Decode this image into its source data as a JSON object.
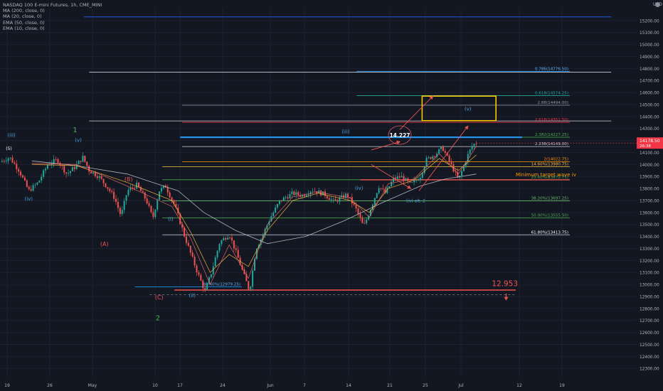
{
  "header": {
    "title": "NASDAQ 100 E-mini Futures, 1h, CME_MINI",
    "indicators": [
      "MA (200, close, 0)",
      "MA (20, close, 0)",
      "EMA (50, close, 0)",
      "EMA (10, close, 0)"
    ]
  },
  "currency": "USD",
  "last_price": {
    "value": "14178.50",
    "countdown": "26:38"
  },
  "colors": {
    "bg": "#131722",
    "up": "#26a69a",
    "down": "#ef5350",
    "grid": "#1e222d",
    "axis_text": "#b2b5be"
  },
  "chart_data": {
    "type": "candlestick",
    "title": "NASDAQ 100 E-mini Futures, 1h, CME_MINI",
    "x_tick_labels": [
      "19",
      "26",
      "May",
      "10",
      "17",
      "24",
      "Jun",
      "7",
      "14",
      "21",
      "25",
      "Jul",
      "12",
      "19"
    ],
    "y_ticks": [
      12300,
      12400,
      12500,
      12600,
      12700,
      12800,
      12900,
      13000,
      13100,
      13200,
      13300,
      13400,
      13500,
      13600,
      13700,
      13800,
      13900,
      14000,
      14100,
      14200,
      14300,
      14400,
      14500,
      14600,
      14700,
      14800,
      14900,
      15000,
      15100,
      15200
    ],
    "y_tick_labels": [
      "12300.00",
      "12400.00",
      "12500.00",
      "12600.00",
      "12700.00",
      "12800.00",
      "12900.00",
      "13000.00",
      "13100.00",
      "13200.00",
      "13300.00",
      "13400.00",
      "13500.00",
      "13600.00",
      "13700.00",
      "13800.00",
      "13900.00",
      "14000.00",
      "14100.00",
      "14200.00",
      "14300.00",
      "14400.00",
      "14500.00",
      "14600.00",
      "14700.00",
      "14800.00",
      "14900.00",
      "15000.00",
      "15100.00",
      "15200.00"
    ],
    "ylim": [
      12230,
      15300
    ],
    "price_path": [
      [
        0,
        14020
      ],
      [
        0.015,
        14060
      ],
      [
        0.03,
        13950
      ],
      [
        0.045,
        13780
      ],
      [
        0.06,
        13850
      ],
      [
        0.075,
        14000
      ],
      [
        0.09,
        14040
      ],
      [
        0.105,
        13920
      ],
      [
        0.118,
        13980
      ],
      [
        0.13,
        14060
      ],
      [
        0.14,
        13950
      ],
      [
        0.155,
        13900
      ],
      [
        0.17,
        13800
      ],
      [
        0.18,
        13720
      ],
      [
        0.19,
        13570
      ],
      [
        0.2,
        13780
      ],
      [
        0.215,
        13830
      ],
      [
        0.23,
        13700
      ],
      [
        0.24,
        13550
      ],
      [
        0.25,
        13780
      ],
      [
        0.26,
        13820
      ],
      [
        0.275,
        13650
      ],
      [
        0.29,
        13400
      ],
      [
        0.3,
        13250
      ],
      [
        0.31,
        13100
      ],
      [
        0.322,
        12940
      ],
      [
        0.332,
        13100
      ],
      [
        0.345,
        13350
      ],
      [
        0.36,
        13420
      ],
      [
        0.372,
        13250
      ],
      [
        0.385,
        13050
      ],
      [
        0.392,
        12945
      ],
      [
        0.402,
        13300
      ],
      [
        0.412,
        13400
      ],
      [
        0.424,
        13550
      ],
      [
        0.44,
        13700
      ],
      [
        0.46,
        13760
      ],
      [
        0.475,
        13740
      ],
      [
        0.49,
        13790
      ],
      [
        0.51,
        13750
      ],
      [
        0.525,
        13690
      ],
      [
        0.545,
        13750
      ],
      [
        0.56,
        13620
      ],
      [
        0.571,
        13480
      ],
      [
        0.58,
        13600
      ],
      [
        0.595,
        13820
      ],
      [
        0.605,
        13760
      ],
      [
        0.618,
        13880
      ],
      [
        0.63,
        13900
      ],
      [
        0.645,
        13830
      ],
      [
        0.66,
        13900
      ],
      [
        0.67,
        14040
      ],
      [
        0.685,
        14090
      ],
      [
        0.695,
        14140
      ],
      [
        0.705,
        14030
      ],
      [
        0.712,
        13960
      ],
      [
        0.72,
        13870
      ],
      [
        0.728,
        13980
      ],
      [
        0.735,
        14080
      ],
      [
        0.742,
        14160
      ],
      [
        0.748,
        14178.5
      ]
    ],
    "ma_series": [
      {
        "color": "#c9cfd8",
        "points": [
          [
            0.05,
            14030
          ],
          [
            0.12,
            13990
          ],
          [
            0.2,
            13920
          ],
          [
            0.28,
            13780
          ],
          [
            0.32,
            13600
          ],
          [
            0.37,
            13450
          ],
          [
            0.42,
            13340
          ],
          [
            0.48,
            13400
          ],
          [
            0.54,
            13530
          ],
          [
            0.6,
            13680
          ],
          [
            0.66,
            13820
          ],
          [
            0.7,
            13880
          ],
          [
            0.748,
            13920
          ]
        ]
      },
      {
        "color": "#f2b33d",
        "points": [
          [
            0.05,
            14000
          ],
          [
            0.12,
            13990
          ],
          [
            0.2,
            13850
          ],
          [
            0.27,
            13700
          ],
          [
            0.3,
            13430
          ],
          [
            0.33,
            13100
          ],
          [
            0.36,
            13250
          ],
          [
            0.39,
            13150
          ],
          [
            0.42,
            13450
          ],
          [
            0.46,
            13700
          ],
          [
            0.5,
            13760
          ],
          [
            0.55,
            13700
          ],
          [
            0.58,
            13600
          ],
          [
            0.61,
            13800
          ],
          [
            0.65,
            13870
          ],
          [
            0.69,
            14050
          ],
          [
            0.72,
            13950
          ],
          [
            0.748,
            14080
          ]
        ]
      },
      {
        "color": "#e06a6a",
        "points": [
          [
            0.05,
            14010
          ],
          [
            0.12,
            14000
          ],
          [
            0.2,
            13820
          ],
          [
            0.27,
            13650
          ],
          [
            0.3,
            13380
          ],
          [
            0.33,
            13000
          ],
          [
            0.36,
            13330
          ],
          [
            0.39,
            13050
          ],
          [
            0.42,
            13500
          ],
          [
            0.46,
            13730
          ],
          [
            0.5,
            13770
          ],
          [
            0.55,
            13720
          ],
          [
            0.58,
            13560
          ],
          [
            0.61,
            13840
          ],
          [
            0.65,
            13880
          ],
          [
            0.69,
            14090
          ],
          [
            0.72,
            13920
          ],
          [
            0.748,
            14150
          ]
        ]
      }
    ],
    "hlines": [
      {
        "y": 15230,
        "x0": 0.132,
        "x1": 0.96,
        "color": "#2962ff",
        "width": 0.8,
        "label": "",
        "label_color": ""
      },
      {
        "y": 14770,
        "x0": 0.14,
        "x1": 0.96,
        "color": "#c9cfd8",
        "width": 0.8,
        "label": "",
        "label_color": ""
      },
      {
        "y": 14776.5,
        "x0": 0.56,
        "x1": 0.895,
        "color": "#2196f3",
        "width": 0.8,
        "label": "0.786(14776.50)",
        "label_color": "#64b5f6"
      },
      {
        "y": 14574.25,
        "x0": 0.56,
        "x1": 0.895,
        "color": "#26a69a",
        "width": 0.8,
        "label": "0.618(14574.25)",
        "label_color": "#26a69a"
      },
      {
        "y": 14494,
        "x0": 0.286,
        "x1": 0.895,
        "color": "#9598a1",
        "width": 0.8,
        "label": "2.88(14494.00)",
        "label_color": "#9598a1"
      },
      {
        "y": 14351.5,
        "x0": 0.286,
        "x1": 0.895,
        "color": "#f23645",
        "width": 0.8,
        "label": "2.618(14351.50)",
        "label_color": "#f23645"
      },
      {
        "y": 14363,
        "x0": 0.14,
        "x1": 0.96,
        "color": "#c9cfd8",
        "width": 0.8,
        "label": "",
        "label_color": ""
      },
      {
        "y": 14227.25,
        "x0": 0.286,
        "x1": 0.895,
        "color": "#4caf50",
        "width": 0.8,
        "label": "2.382(14227.25)",
        "label_color": "#4caf50"
      },
      {
        "y": 14227,
        "x0": 0.283,
        "x1": 0.82,
        "color": "#2196f3",
        "width": 2.2,
        "label": "",
        "label_color": ""
      },
      {
        "y": 14149,
        "x0": 0.286,
        "x1": 0.895,
        "color": "#b2b5be",
        "width": 0.8,
        "label": "2.236(14149.00)",
        "label_color": "#d1d4dc"
      },
      {
        "y": 14022.75,
        "x0": 0.286,
        "x1": 0.895,
        "color": "#ff9800",
        "width": 0.8,
        "label": "2(14022.75)",
        "label_color": "#ff9800"
      },
      {
        "y": 13980.75,
        "x0": 0.255,
        "x1": 0.895,
        "color": "#f7c948",
        "width": 0.8,
        "label": "14.60%(13980.75)",
        "label_color": "#ffb74d"
      },
      {
        "y": 13872.75,
        "x0": 0.255,
        "x1": 0.895,
        "color": "#4caf50",
        "width": 0.8,
        "label": "23.60%(13872.75)",
        "label_color": "#4caf50"
      },
      {
        "y": 13872,
        "x0": 0.566,
        "x1": 0.895,
        "color": "#ef5350",
        "width": 1.4,
        "label": "",
        "label_color": ""
      },
      {
        "y": 13697.25,
        "x0": 0.255,
        "x1": 0.895,
        "color": "#66bb6a",
        "width": 0.8,
        "label": "38.20%(13697.25)",
        "label_color": "#66bb6a"
      },
      {
        "y": 13555.5,
        "x0": 0.255,
        "x1": 0.895,
        "color": "#4caf50",
        "width": 0.8,
        "label": "50.00%(13555.50)",
        "label_color": "#4caf50"
      },
      {
        "y": 13413.75,
        "x0": 0.255,
        "x1": 0.895,
        "color": "#d1d4dc",
        "width": 0.8,
        "label": "61.80%(13413.75)",
        "label_color": "#ffffff"
      },
      {
        "y": 12979.25,
        "x0": 0.212,
        "x1": 0.38,
        "color": "#2196f3",
        "width": 0.8,
        "label": "88.60%(12979.25)",
        "label_color": "#64b5f6"
      },
      {
        "y": 12953,
        "x0": 0.274,
        "x1": 0.81,
        "color": "#ef5350",
        "width": 1.4,
        "label": "",
        "label_color": ""
      }
    ],
    "wave_labels": [
      {
        "text": "(iii)",
        "x": 0.018,
        "y": 14230,
        "color": "#4aa3df",
        "size": 7
      },
      {
        "text": "(5)",
        "x": 0.014,
        "y": 14120,
        "color": "#ffffff",
        "size": 6
      },
      {
        "text": "(iv)",
        "x": 0.045,
        "y": 13700,
        "color": "#4aa3df",
        "size": 7
      },
      {
        "text": "1",
        "x": 0.118,
        "y": 14270,
        "color": "#4caf50",
        "size": 10
      },
      {
        "text": "(v)",
        "x": 0.123,
        "y": 14190,
        "color": "#4aa3df",
        "size": 7
      },
      {
        "text": "(B)",
        "x": 0.202,
        "y": 13860,
        "color": "#ef5350",
        "size": 8
      },
      {
        "text": "(A)",
        "x": 0.164,
        "y": 13320,
        "color": "#ef5350",
        "size": 8
      },
      {
        "text": "(i)",
        "x": 0.268,
        "y": 13530,
        "color": "#4aa3df",
        "size": 7
      },
      {
        "text": "(C)",
        "x": 0.25,
        "y": 12875,
        "color": "#ef5350",
        "size": 8
      },
      {
        "text": "2",
        "x": 0.248,
        "y": 12700,
        "color": "#4caf50",
        "size": 10
      },
      {
        "text": "(ii)",
        "x": 0.302,
        "y": 12895,
        "color": "#4aa3df",
        "size": 7
      },
      {
        "text": "(iii)",
        "x": 0.543,
        "y": 14260,
        "color": "#4aa3df",
        "size": 7
      },
      {
        "text": "(iv)",
        "x": 0.564,
        "y": 13790,
        "color": "#4aa3df",
        "size": 7
      },
      {
        "text": "(iv) alt. 2",
        "x": 0.653,
        "y": 13685,
        "color": "#4aa3df",
        "size": 6
      },
      {
        "text": "(v)",
        "x": 0.735,
        "y": 14450,
        "color": "#4aa3df",
        "size": 7
      }
    ],
    "annotations": {
      "target_box": {
        "x0": 0.663,
        "x1": 0.779,
        "y_top": 14570,
        "y_bottom": 14365,
        "color": "#f9c800"
      },
      "circle": {
        "x": 0.628,
        "y": 14245,
        "text": "14.227"
      },
      "min_target_label": {
        "text": "Minimum target wave iv",
        "x": 0.81,
        "y": 13920,
        "color": "#ff9800"
      },
      "target_level_label": {
        "text": "12.953",
        "x": 0.793,
        "y": 13010,
        "color": "#ef5350"
      },
      "down_arrow": {
        "x": 0.795,
        "y": 12895,
        "color": "#ef5350"
      },
      "arrows": [
        {
          "x0": 0.583,
          "y0": 14120,
          "x1": 0.628,
          "y1": 14190,
          "color": "#ef5350"
        },
        {
          "x0": 0.583,
          "y0": 14000,
          "x1": 0.645,
          "y1": 13800,
          "color": "#ef5350"
        },
        {
          "x0": 0.658,
          "y0": 13780,
          "x1": 0.735,
          "y1": 14320,
          "color": "#ef5350"
        },
        {
          "x0": 0.628,
          "y0": 14290,
          "x1": 0.68,
          "y1": 14570,
          "color": "#ef5350"
        }
      ]
    }
  }
}
